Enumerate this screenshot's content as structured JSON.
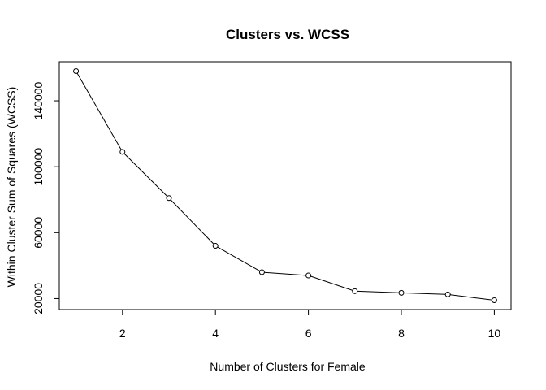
{
  "chart_data": {
    "type": "line",
    "title": "Clusters vs. WCSS",
    "xlabel": "Number of Clusters for Female",
    "ylabel": "Within Cluster Sum of Squares (WCSS)",
    "x": [
      1,
      2,
      3,
      4,
      5,
      6,
      7,
      8,
      9,
      10
    ],
    "series": [
      {
        "values": [
          158000,
          109000,
          81000,
          52000,
          36000,
          34000,
          24500,
          23500,
          22500,
          19000
        ]
      }
    ],
    "x_ticks": [
      2,
      4,
      6,
      8,
      10
    ],
    "y_ticks": [
      20000,
      60000,
      100000,
      140000
    ],
    "xlim": [
      0.64,
      10.36
    ],
    "ylim": [
      13320,
      163680
    ],
    "grid": false,
    "marker": "open-circle",
    "legend": "none"
  }
}
